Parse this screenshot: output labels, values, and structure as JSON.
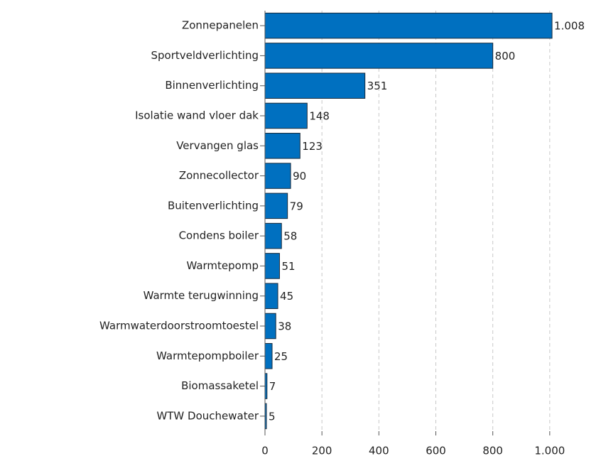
{
  "chart_data": {
    "type": "hbar",
    "categories": [
      "Zonnepanelen",
      "Sportveldverlichting",
      "Binnenverlichting",
      "Isolatie wand vloer dak",
      "Vervangen glas",
      "Zonnecollector",
      "Buitenverlichting",
      "Condens boiler",
      "Warmtepomp",
      "Warmte terugwinning",
      "Warmwaterdoorstroomtoestel",
      "Warmtepompboiler",
      "Biomassaketel",
      "WTW Douchewater"
    ],
    "values": [
      1008,
      800,
      351,
      148,
      123,
      90,
      79,
      58,
      51,
      45,
      38,
      25,
      7,
      5
    ],
    "value_labels": [
      "1.008",
      "800",
      "351",
      "148",
      "123",
      "90",
      "79",
      "58",
      "51",
      "45",
      "38",
      "25",
      "7",
      "5"
    ],
    "color": "#0070c0",
    "xlim": [
      0,
      1180
    ],
    "xticks": [
      0,
      200,
      400,
      600,
      800,
      {
        "value": 1000,
        "label": "1.000"
      }
    ],
    "grid": true
  }
}
